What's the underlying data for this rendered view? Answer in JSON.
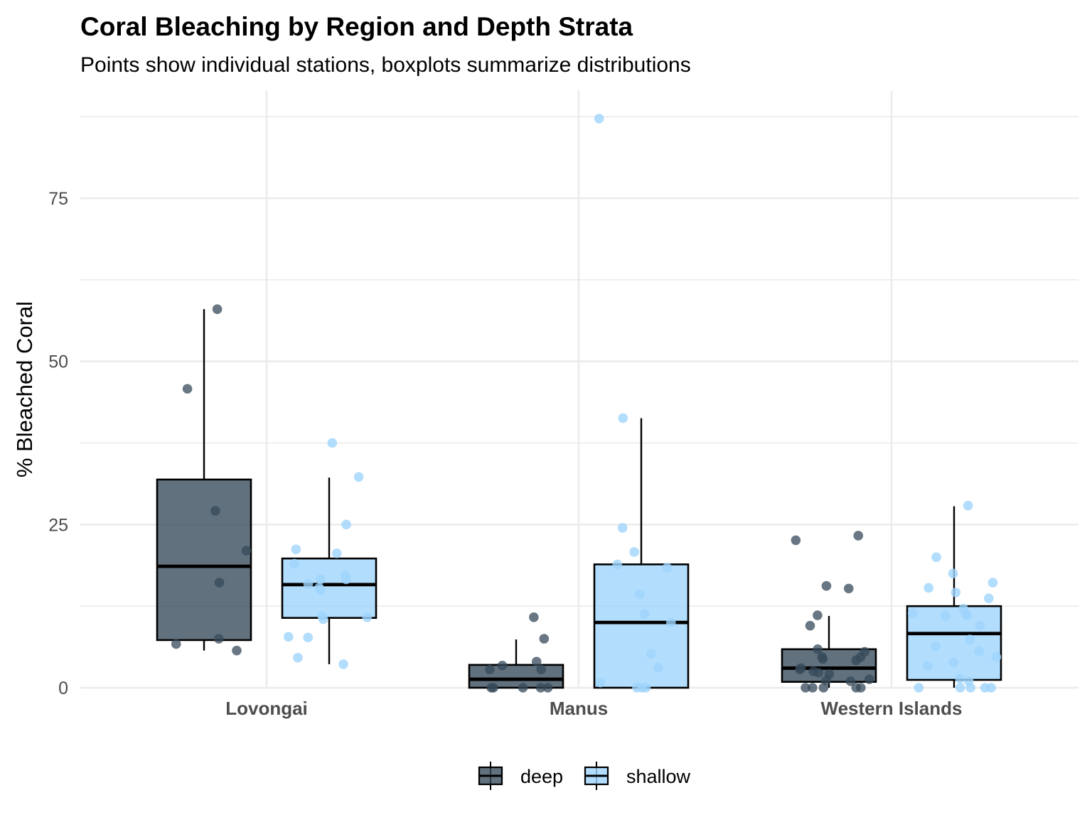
{
  "chart_data": {
    "type": "boxplot",
    "title": "Coral Bleaching by Region and Depth Strata",
    "subtitle": "Points show individual stations, boxplots summarize distributions",
    "xlabel": "",
    "ylabel": "% Bleached Coral",
    "ylim": [
      0,
      90
    ],
    "yticks": [
      0,
      25,
      50,
      75
    ],
    "categories": [
      "Lovongai",
      "Manus",
      "Western Islands"
    ],
    "grid": true,
    "legend_position": "bottom",
    "series": [
      {
        "name": "deep",
        "color": "#36495a",
        "boxes": [
          {
            "category": "Lovongai",
            "lower_whisker": 5.7,
            "q1": 7.3,
            "median": 18.6,
            "q3": 31.9,
            "upper_whisker": 58.0
          },
          {
            "category": "Manus",
            "lower_whisker": 0.0,
            "q1": 0.0,
            "median": 1.3,
            "q3": 3.5,
            "upper_whisker": 7.4
          },
          {
            "category": "Western Islands",
            "lower_whisker": 0.0,
            "q1": 0.9,
            "median": 3.0,
            "q3": 5.9,
            "upper_whisker": 11.0
          }
        ],
        "points": [
          {
            "category": "Lovongai",
            "values": [
              58.0,
              45.8,
              27.1,
              21.0,
              16.1,
              7.5,
              6.7,
              5.7
            ]
          },
          {
            "category": "Manus",
            "values": [
              10.8,
              7.5,
              4.0,
              3.4,
              2.8,
              2.8,
              0.0,
              0.0,
              0.0,
              0.0,
              0.0
            ]
          },
          {
            "category": "Western Islands",
            "values": [
              23.3,
              22.6,
              15.6,
              15.2,
              11.1,
              9.5,
              5.9,
              5.5,
              4.7,
              4.7,
              4.4,
              4.2,
              3.0,
              2.8,
              2.5,
              2.3,
              2.1,
              1.3,
              1.1,
              1.0,
              0.0,
              0.0,
              0.0,
              0.0,
              0.0
            ]
          }
        ]
      },
      {
        "name": "shallow",
        "color": "#9fd5fd",
        "boxes": [
          {
            "category": "Lovongai",
            "lower_whisker": 3.6,
            "q1": 10.7,
            "median": 15.8,
            "q3": 19.8,
            "upper_whisker": 32.2
          },
          {
            "category": "Manus",
            "lower_whisker": 0.0,
            "q1": 0.0,
            "median": 10.0,
            "q3": 18.9,
            "upper_whisker": 41.3
          },
          {
            "category": "Western Islands",
            "lower_whisker": 0.0,
            "q1": 1.2,
            "median": 8.3,
            "q3": 12.5,
            "upper_whisker": 27.8
          }
        ],
        "points": [
          {
            "category": "Lovongai",
            "values": [
              37.5,
              32.3,
              25.0,
              21.2,
              20.6,
              19.0,
              17.2,
              16.6,
              16.6,
              15.9,
              15.3,
              15.0,
              11.0,
              10.8,
              10.5,
              7.8,
              7.7,
              4.6,
              3.6
            ]
          },
          {
            "category": "Manus",
            "values": [
              87.2,
              41.3,
              24.5,
              20.8,
              18.9,
              18.4,
              14.3,
              11.3,
              10.0,
              5.2,
              3.1,
              0.8,
              0.0,
              0.0,
              0.0
            ]
          },
          {
            "category": "Western Islands",
            "values": [
              27.9,
              20.0,
              17.5,
              16.1,
              15.3,
              14.6,
              13.7,
              12.1,
              11.4,
              11.3,
              11.1,
              11.0,
              9.5,
              7.4,
              6.4,
              5.6,
              4.7,
              3.9,
              3.3,
              1.4,
              1.0,
              0.0,
              0.0,
              0.0,
              0.0,
              0.0
            ]
          }
        ]
      }
    ]
  },
  "legend": {
    "items": [
      {
        "label": "deep",
        "color": "#36495a"
      },
      {
        "label": "shallow",
        "color": "#9fd5fd"
      }
    ]
  }
}
